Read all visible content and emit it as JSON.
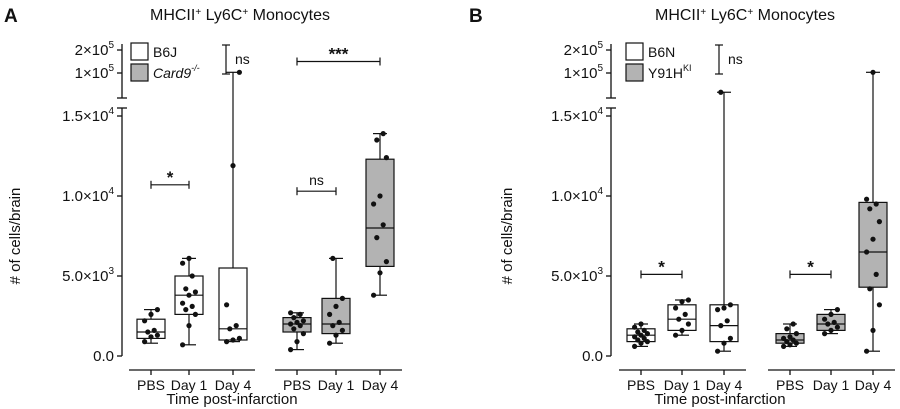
{
  "chart_data": [
    {
      "type": "box",
      "panel_label": "A",
      "title_parts": [
        "MHCII",
        "+",
        " Ly6C",
        "+",
        " Monocytes"
      ],
      "ylabel": "# of cells/brain",
      "xlabel": "Time post-infarction",
      "categories": [
        "PBS",
        "Day 1",
        "Day 4"
      ],
      "legend": [
        {
          "label": "B6J",
          "sup": "",
          "italic": false,
          "fill": "#ffffff"
        },
        {
          "label": "Card9",
          "sup": "-/-",
          "italic": true,
          "fill": "#b3b3b3"
        }
      ],
      "legend_sig": "ns",
      "y_ticks_lower": [
        {
          "text": "0.0",
          "exp": ""
        },
        {
          "text": "5.0×10",
          "exp": "3"
        },
        {
          "text": "1.0×10",
          "exp": "4"
        },
        {
          "text": "1.5×10",
          "exp": "4"
        }
      ],
      "y_ticks_upper": [
        {
          "text": "1×10",
          "exp": "5"
        },
        {
          "text": "2×10",
          "exp": "5"
        }
      ],
      "ylim_lower": [
        0,
        15000
      ],
      "ylim_upper": [
        100000,
        200000
      ],
      "series": [
        {
          "name": "B6J",
          "fill": "#ffffff",
          "boxes": [
            {
              "category": "PBS",
              "min": 800,
              "q1": 1100,
              "median": 1500,
              "q3": 2300,
              "max": 2900,
              "points": [
                900,
                1200,
                1300,
                1500,
                1600,
                2200,
                2600,
                2900
              ]
            },
            {
              "category": "Day 1",
              "min": 700,
              "q1": 2600,
              "median": 3800,
              "q3": 5000,
              "max": 6100,
              "points": [
                700,
                1900,
                2600,
                2900,
                3100,
                3300,
                3800,
                4000,
                4200,
                5000,
                5800,
                6100
              ]
            },
            {
              "category": "Day 4",
              "min": 900,
              "q1": 1000,
              "median": 1700,
              "q3": 5500,
              "max": 103000,
              "points": [
                900,
                1000,
                1100,
                1700,
                1900,
                3200,
                11900,
                103000
              ]
            }
          ]
        },
        {
          "name": "Card9-/-",
          "fill": "#b3b3b3",
          "boxes": [
            {
              "category": "PBS",
              "min": 400,
              "q1": 1500,
              "median": 2000,
              "q3": 2400,
              "max": 2700,
              "points": [
                400,
                900,
                1400,
                1700,
                1900,
                2000,
                2100,
                2200,
                2400,
                2600,
                2700
              ]
            },
            {
              "category": "Day 1",
              "min": 800,
              "q1": 1400,
              "median": 2000,
              "q3": 3600,
              "max": 6100,
              "points": [
                800,
                1300,
                1600,
                1900,
                2100,
                2600,
                3100,
                3600,
                6100
              ]
            },
            {
              "category": "Day 4",
              "min": 3800,
              "q1": 5600,
              "median": 8000,
              "q3": 12300,
              "max": 13900,
              "points": [
                3800,
                5200,
                5900,
                7400,
                8200,
                9500,
                10000,
                12400,
                13500,
                13900
              ]
            }
          ]
        }
      ],
      "comparisons": [
        {
          "series": 0,
          "from": "PBS",
          "to": "Day 1",
          "label": "*",
          "y": 10700
        },
        {
          "series": 1,
          "from": "PBS",
          "to": "Day 1",
          "label": "ns",
          "y": 10300
        },
        {
          "series": 1,
          "from": "PBS",
          "to": "Day 4",
          "label": "***",
          "y": 150000
        }
      ],
      "grid": false
    },
    {
      "type": "box",
      "panel_label": "B",
      "title_parts": [
        "MHCII",
        "+",
        " Ly6C",
        "+",
        " Monocytes"
      ],
      "ylabel": "# of cells/brain",
      "xlabel": "Time post-infarction",
      "categories": [
        "PBS",
        "Day 1",
        "Day 4"
      ],
      "legend": [
        {
          "label": "B6N",
          "sup": "",
          "italic": false,
          "fill": "#ffffff"
        },
        {
          "label": "Y91H",
          "sup": "KI",
          "italic": false,
          "fill": "#b3b3b3"
        }
      ],
      "legend_sig": "ns",
      "y_ticks_lower": [
        {
          "text": "0.0",
          "exp": ""
        },
        {
          "text": "5.0×10",
          "exp": "3"
        },
        {
          "text": "1.0×10",
          "exp": "4"
        },
        {
          "text": "1.5×10",
          "exp": "4"
        }
      ],
      "y_ticks_upper": [
        {
          "text": "1×10",
          "exp": "5"
        },
        {
          "text": "2×10",
          "exp": "5"
        }
      ],
      "ylim_lower": [
        0,
        15000
      ],
      "ylim_upper": [
        100000,
        200000
      ],
      "series": [
        {
          "name": "B6N",
          "fill": "#ffffff",
          "boxes": [
            {
              "category": "PBS",
              "min": 600,
              "q1": 900,
              "median": 1300,
              "q3": 1700,
              "max": 2000,
              "points": [
                600,
                800,
                900,
                1000,
                1100,
                1200,
                1300,
                1400,
                1500,
                1600,
                1800,
                2000
              ]
            },
            {
              "category": "Day 1",
              "min": 1300,
              "q1": 1600,
              "median": 2300,
              "q3": 3200,
              "max": 3500,
              "points": [
                1300,
                1600,
                2000,
                2300,
                2600,
                3000,
                3400,
                3500
              ]
            },
            {
              "category": "Day 4",
              "min": 300,
              "q1": 900,
              "median": 1900,
              "q3": 3200,
              "max": 16300,
              "points": [
                300,
                800,
                1100,
                1900,
                2200,
                2900,
                3000,
                3200,
                16300
              ]
            }
          ]
        },
        {
          "name": "Y91H KI",
          "fill": "#b3b3b3",
          "boxes": [
            {
              "category": "PBS",
              "min": 600,
              "q1": 800,
              "median": 1000,
              "q3": 1400,
              "max": 2000,
              "points": [
                600,
                700,
                800,
                900,
                1000,
                1100,
                1200,
                1400,
                1700,
                2000
              ]
            },
            {
              "category": "Day 1",
              "min": 1400,
              "q1": 1600,
              "median": 2000,
              "q3": 2600,
              "max": 2900,
              "points": [
                1400,
                1600,
                1800,
                2000,
                2100,
                2300,
                2600,
                2900
              ]
            },
            {
              "category": "Day 4",
              "min": 300,
              "q1": 4300,
              "median": 6500,
              "q3": 9600,
              "max": 103000,
              "points": [
                300,
                1600,
                3200,
                4200,
                5100,
                6500,
                7300,
                8400,
                9200,
                9500,
                9800,
                103000
              ]
            }
          ]
        }
      ],
      "comparisons": [
        {
          "series": 0,
          "from": "PBS",
          "to": "Day 1",
          "label": "*",
          "y": 5100
        },
        {
          "series": 1,
          "from": "PBS",
          "to": "Day 1",
          "label": "*",
          "y": 5100
        }
      ],
      "grid": false
    }
  ]
}
